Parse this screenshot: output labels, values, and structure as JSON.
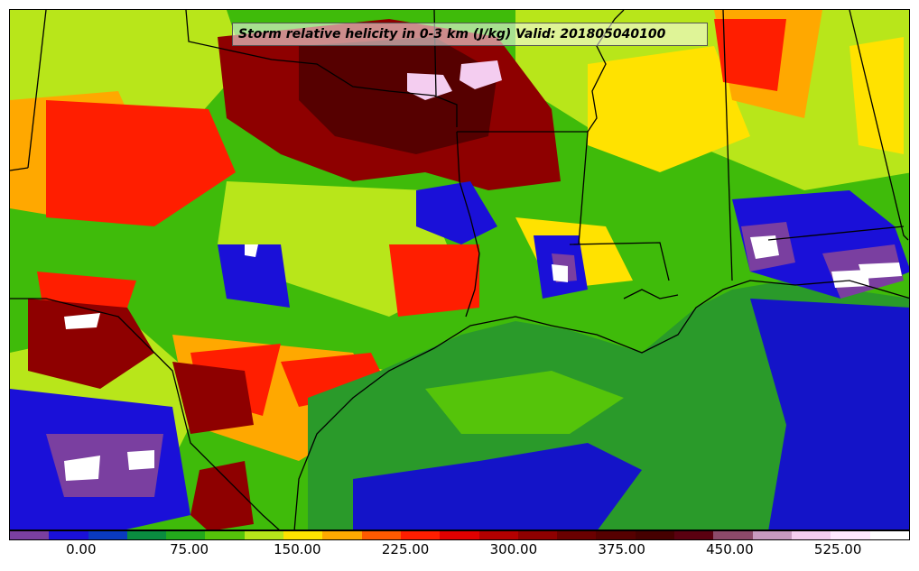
{
  "title": "Storm relative helicity in 0-3 km (J/kg) Valid: 201805040100",
  "colorbar": {
    "colors": [
      "#7a3fa0",
      "#1a10d8",
      "#0a3ac0",
      "#0a8c40",
      "#23a81c",
      "#55c40a",
      "#b8e61a",
      "#ffe200",
      "#ffa800",
      "#ff5a00",
      "#ff1e00",
      "#e00000",
      "#b40000",
      "#8e0000",
      "#6a0000",
      "#560000",
      "#460000",
      "#5a0010",
      "#8c4a6a",
      "#c89ac0",
      "#f4cdf0",
      "#ffe8ff",
      "#ffffff"
    ],
    "tick_labels": [
      "0.00",
      "75.00",
      "150.00",
      "225.00",
      "300.00",
      "375.00",
      "450.00",
      "525.00"
    ],
    "tick_values": [
      0,
      75,
      150,
      225,
      300,
      375,
      450,
      525
    ],
    "range": [
      -50,
      575
    ]
  },
  "map": {
    "background_color": "#1cb000",
    "gulf_color": "#2a9a2a",
    "deep_gulf_color": "#1414c8",
    "border_color": "#000000"
  }
}
